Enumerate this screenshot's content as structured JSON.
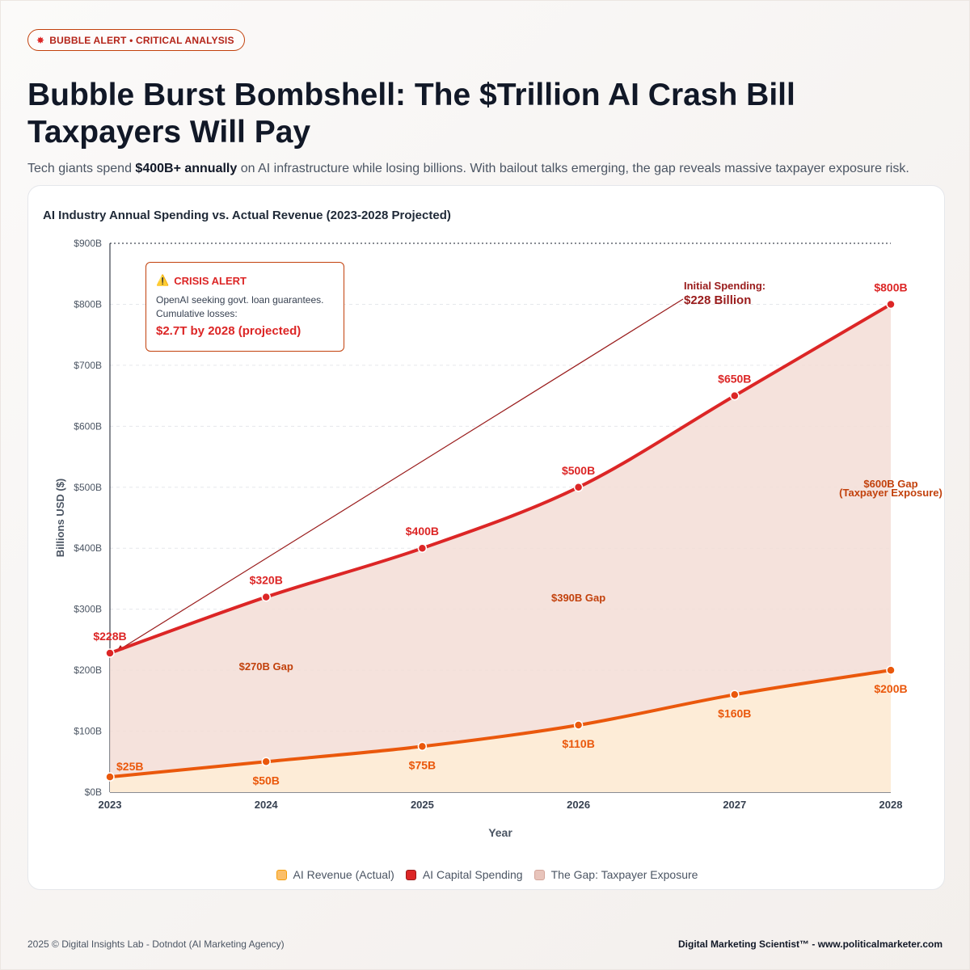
{
  "badge": {
    "icon": "explosion-icon",
    "glyph": "✸",
    "label": "BUBBLE ALERT • CRITICAL ANALYSIS"
  },
  "headline": "Bubble Burst Bombshell: The $Trillion AI Crash Bill Taxpayers Will Pay",
  "subtitle": {
    "before": "Tech giants spend ",
    "bold": "$400B+ annually",
    "after": " on AI infrastructure while losing billions. With bailout talks emerging, the gap reveals massive taxpayer exposure risk."
  },
  "callout": {
    "icon": "warning-icon",
    "glyph": "⚠️",
    "title": "CRISIS ALERT",
    "body": "OpenAI seeking govt. loan guarantees. Cumulative losses:",
    "value": "$2.7T by 2028 (projected)"
  },
  "annotation": {
    "line1": "Initial Spending:",
    "line2": "$228 Billion"
  },
  "legend": [
    {
      "label": "AI Revenue (Actual)",
      "color": "#fbbf6a"
    },
    {
      "label": "AI Capital Spending",
      "color": "#dc2626"
    },
    {
      "label": "The Gap: Taxpayer Exposure",
      "color": "#e8c4bb"
    }
  ],
  "footer": {
    "left": "2025 © Digital Insights Lab - Dotndot (AI Marketing Agency)",
    "right": "Digital Marketing Scientist™ - www.politicalmarketer.com"
  },
  "colors": {
    "spending": "#dc2626",
    "revenue": "#ea580c",
    "gap_fill": "#f3ddd6",
    "revenue_fill": "#fdecd6"
  },
  "chart_data": {
    "type": "line",
    "title": "AI Industry Annual Spending vs. Actual Revenue (2023-2028 Projected)",
    "xlabel": "Year",
    "ylabel": "Billions USD ($)",
    "x": [
      "2023",
      "2024",
      "2025",
      "2026",
      "2027",
      "2028"
    ],
    "ylim": [
      0,
      900
    ],
    "yticks": [
      "$0B",
      "$100B",
      "$200B",
      "$300B",
      "$400B",
      "$500B",
      "$600B",
      "$700B",
      "$800B",
      "$900B"
    ],
    "grid": true,
    "legend_position": "bottom",
    "series": [
      {
        "name": "AI Capital Spending",
        "values": [
          228,
          320,
          400,
          500,
          650,
          800
        ],
        "labels": [
          "$228B",
          "$320B",
          "$400B",
          "$500B",
          "$650B",
          "$800B"
        ]
      },
      {
        "name": "AI Revenue (Actual)",
        "values": [
          25,
          50,
          75,
          110,
          160,
          200
        ],
        "labels": [
          "$25B",
          "$50B",
          "$75B",
          "$110B",
          "$160B",
          "$200B"
        ]
      }
    ],
    "gap_labels": [
      {
        "text": "$270B Gap",
        "x": "2024",
        "y": 200
      },
      {
        "text": "$390B Gap",
        "x": "2026",
        "y": 313
      },
      {
        "text": "$600B Gap",
        "x": "2028",
        "y": 500
      },
      {
        "text": "(Taxpayer Exposure)",
        "x": "2028",
        "y": 485
      }
    ]
  }
}
